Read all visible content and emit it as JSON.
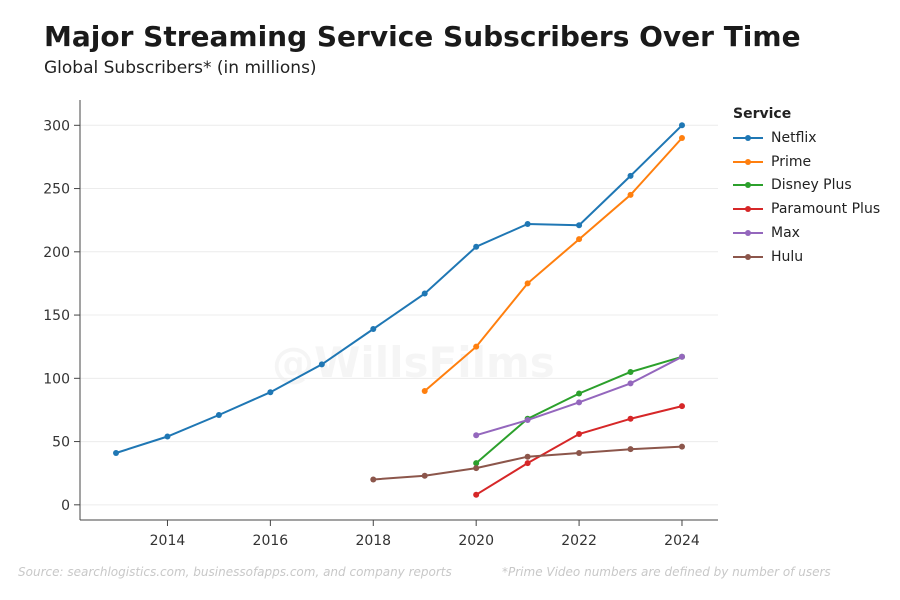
{
  "title": "Major Streaming Service Subscribers Over Time",
  "subtitle": "Global Subscribers* (in millions)",
  "watermark": "@WillsFilms",
  "footer": {
    "source": "Source: searchlogistics.com, businessofapps.com, and company reports",
    "note": "*Prime Video numbers are defined by number of users"
  },
  "legend": {
    "title": "Service"
  },
  "chart_data": {
    "type": "line",
    "xlim": [
      2012.3,
      2024.7
    ],
    "ylim": [
      -12,
      320
    ],
    "x_ticks": [
      2014,
      2016,
      2018,
      2020,
      2022,
      2024
    ],
    "y_ticks": [
      0,
      50,
      100,
      150,
      200,
      250,
      300
    ],
    "grid": "horizontal",
    "legend_position": "right",
    "series": [
      {
        "name": "Netflix",
        "color": "#1f77b4",
        "x": [
          2013,
          2014,
          2015,
          2016,
          2017,
          2018,
          2019,
          2020,
          2021,
          2022,
          2023,
          2024
        ],
        "y": [
          41,
          54,
          71,
          89,
          111,
          139,
          167,
          204,
          222,
          221,
          260,
          300
        ]
      },
      {
        "name": "Prime",
        "color": "#ff7f0e",
        "x": [
          2019,
          2020,
          2021,
          2022,
          2023,
          2024
        ],
        "y": [
          90,
          125,
          175,
          210,
          245,
          290
        ]
      },
      {
        "name": "Disney Plus",
        "color": "#2ca02c",
        "x": [
          2020,
          2021,
          2022,
          2023,
          2024
        ],
        "y": [
          33,
          68,
          88,
          105,
          117
        ]
      },
      {
        "name": "Paramount Plus",
        "color": "#d62728",
        "x": [
          2020,
          2021,
          2022,
          2023,
          2024
        ],
        "y": [
          8,
          33,
          56,
          68,
          78
        ]
      },
      {
        "name": "Max",
        "color": "#9467bd",
        "x": [
          2020,
          2021,
          2022,
          2023,
          2024
        ],
        "y": [
          55,
          67,
          81,
          96,
          117
        ]
      },
      {
        "name": "Hulu",
        "color": "#8c564b",
        "x": [
          2018,
          2019,
          2020,
          2021,
          2022,
          2023,
          2024
        ],
        "y": [
          20,
          23,
          29,
          38,
          41,
          44,
          46
        ]
      }
    ]
  }
}
